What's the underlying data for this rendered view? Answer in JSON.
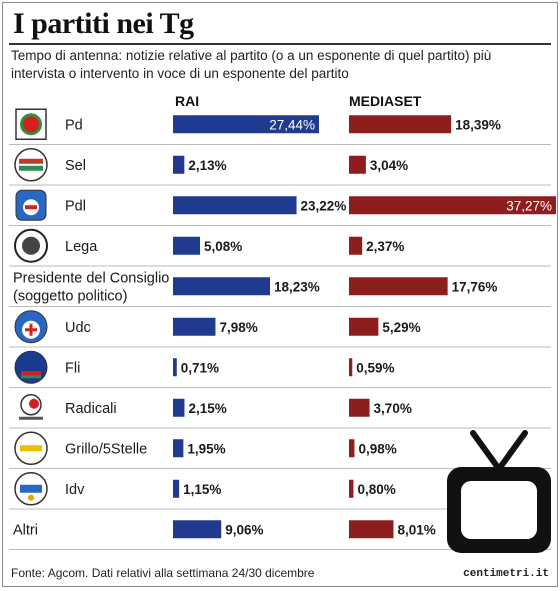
{
  "title": "I partiti nei Tg",
  "subtitle": "Tempo di antenna: notizie relative al partito (o a un esponente di quel partito) più intervista o intervento in voce di un esponente del partito",
  "footer": "Fonte: Agcom. Dati relativi alla settimana 24/30 dicembre",
  "brand": "centimetri.it",
  "colors": {
    "rai": "#1f3a8f",
    "mediaset": "#8e1e1e",
    "text": "#1a1a1a",
    "rule": "#bbbbbb"
  },
  "chart_data": {
    "type": "bar",
    "categories": [
      "Pd",
      "Sel",
      "Pdl",
      "Lega",
      "Presidente del Consiglio (soggetto politico)",
      "Udc",
      "Fli",
      "Radicali",
      "Grillo/5Stelle",
      "Idv",
      "Altri"
    ],
    "category_lines": [
      [
        "Pd"
      ],
      [
        "Sel"
      ],
      [
        "Pdl"
      ],
      [
        "Lega"
      ],
      [
        "Presidente del Consiglio",
        "(soggetto politico)"
      ],
      [
        "Udc"
      ],
      [
        "Fli"
      ],
      [
        "Radicali"
      ],
      [
        "Grillo/5Stelle"
      ],
      [
        "Idv"
      ],
      [
        "Altri"
      ]
    ],
    "logos": [
      "pd-logo-icon",
      "sel-logo-icon",
      "pdl-logo-icon",
      "lega-logo-icon",
      "",
      "udc-logo-icon",
      "fli-logo-icon",
      "radicali-logo-icon",
      "m5s-logo-icon",
      "idv-logo-icon",
      ""
    ],
    "series": [
      {
        "name": "RAI",
        "values": [
          27.44,
          2.13,
          23.22,
          5.08,
          18.23,
          7.98,
          0.71,
          2.15,
          1.95,
          1.15,
          9.06
        ],
        "labels": [
          "27,44%",
          "2,13%",
          "23,22%",
          "5,08%",
          "18,23%",
          "7,98%",
          "0,71%",
          "2,15%",
          "1,95%",
          "1,15%",
          "9,06%"
        ]
      },
      {
        "name": "MEDIASET",
        "values": [
          18.39,
          3.04,
          37.27,
          2.37,
          17.76,
          5.29,
          0.59,
          3.7,
          0.98,
          0.8,
          8.01
        ],
        "labels": [
          "18,39%",
          "3,04%",
          "37,27%",
          "2,37%",
          "17,76%",
          "5,29%",
          "0,59%",
          "3,70%",
          "0,98%",
          "0,80%",
          "8,01%"
        ]
      }
    ],
    "inside_label": [
      [
        true,
        false,
        false,
        false,
        false,
        false,
        false,
        false,
        false,
        false,
        false
      ],
      [
        false,
        false,
        true,
        false,
        false,
        false,
        false,
        false,
        false,
        false,
        false
      ]
    ],
    "ylabel": "",
    "xlabel": ""
  }
}
